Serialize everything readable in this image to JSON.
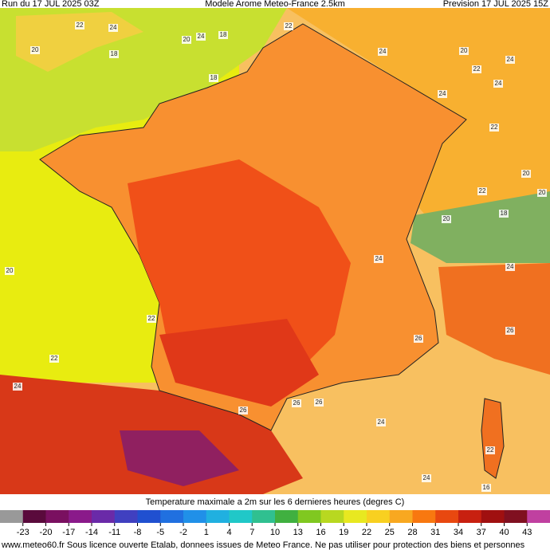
{
  "header": {
    "left": "Run du 17 JUL 2025 03Z",
    "center": "Modele Arome Meteo-France 2.5km",
    "right": "Prevision 17 JUL 2025 15Z"
  },
  "map_labels": [
    22,
    24,
    20,
    18,
    24,
    20,
    22,
    18,
    20,
    22,
    24,
    18,
    24,
    22,
    20,
    24,
    22,
    20,
    24,
    26,
    24,
    24,
    26,
    26,
    24,
    22,
    20,
    22,
    24,
    26,
    24,
    26,
    22,
    16,
    18,
    20
  ],
  "legend": {
    "title": "Temperature maximale a 2m sur les 6 dernieres heures (degres C)",
    "ticks": [
      -23,
      -20,
      -17,
      -14,
      -11,
      -8,
      -5,
      -2,
      1,
      4,
      7,
      10,
      13,
      16,
      19,
      22,
      25,
      28,
      31,
      34,
      37,
      40,
      43
    ],
    "colors": [
      "#999999",
      "#5a0a3c",
      "#7a1060",
      "#8a1a8a",
      "#6a2aa8",
      "#4040c0",
      "#2050d0",
      "#2070e0",
      "#2090e8",
      "#20b0e0",
      "#20c8c8",
      "#30c090",
      "#40b040",
      "#80c820",
      "#b8d820",
      "#e8e820",
      "#f8d020",
      "#f8a820",
      "#f87810",
      "#e84810",
      "#c82010",
      "#a01010",
      "#801020",
      "#c040a0"
    ]
  },
  "footer": "www.meteo60.fr Sous licence ouverte Etalab, donnees issues de Meteo France. Ne pas utiliser pour protection des biens et personnes"
}
